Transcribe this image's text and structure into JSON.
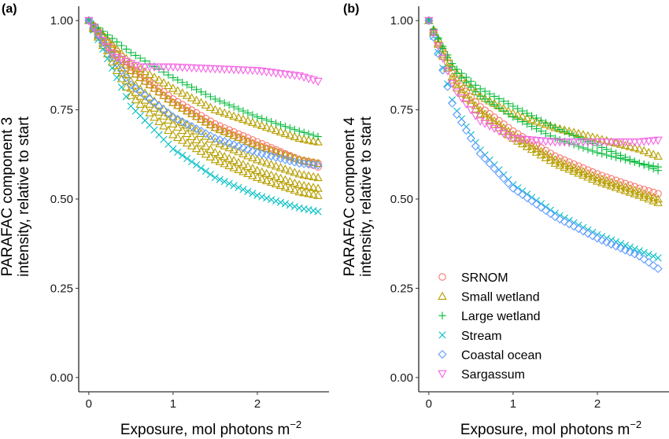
{
  "chart_data": [
    {
      "type": "scatter",
      "panel_label": "(a)",
      "ylabel_line1": "PARAFAC component 3",
      "ylabel_line2": "intensity, relative to start",
      "xlabel": "Exposure, mol photons m",
      "xlabel_sup": "−2",
      "xlim": [
        -0.12,
        2.85
      ],
      "ylim": [
        -0.04,
        1.04
      ],
      "xticks": [
        0,
        1,
        2
      ],
      "xtick_labels": [
        "0",
        "1",
        "2"
      ],
      "yticks": [
        0,
        0.25,
        0.5,
        0.75,
        1.0
      ],
      "ytick_labels": [
        "0.00",
        "0.25",
        "0.50",
        "0.75",
        "1.00"
      ],
      "grid": false,
      "series": [
        {
          "name": "SRNOM",
          "points": [
            [
              0,
              1.0
            ],
            [
              0.5,
              0.87
            ],
            [
              1.0,
              0.78
            ],
            [
              1.5,
              0.71
            ],
            [
              2.0,
              0.66
            ],
            [
              2.5,
              0.61
            ],
            [
              2.72,
              0.59
            ]
          ]
        },
        {
          "name": "SRNOM",
          "points": [
            [
              0,
              1.0
            ],
            [
              0.5,
              0.86
            ],
            [
              1.0,
              0.77
            ],
            [
              1.5,
              0.7
            ],
            [
              2.0,
              0.65
            ],
            [
              2.5,
              0.61
            ],
            [
              2.72,
              0.6
            ]
          ]
        },
        {
          "name": "Small wetland",
          "points": [
            [
              0,
              1.0
            ],
            [
              0.5,
              0.88
            ],
            [
              1.0,
              0.81
            ],
            [
              1.5,
              0.75
            ],
            [
              2.0,
              0.71
            ],
            [
              2.5,
              0.67
            ],
            [
              2.72,
              0.66
            ]
          ]
        },
        {
          "name": "Small wetland",
          "points": [
            [
              0,
              1.0
            ],
            [
              0.5,
              0.86
            ],
            [
              1.0,
              0.77
            ],
            [
              1.5,
              0.7
            ],
            [
              2.0,
              0.65
            ],
            [
              2.5,
              0.61
            ],
            [
              2.72,
              0.6
            ]
          ]
        },
        {
          "name": "Small wetland",
          "points": [
            [
              0,
              1.0
            ],
            [
              0.5,
              0.83
            ],
            [
              1.0,
              0.73
            ],
            [
              1.5,
              0.66
            ],
            [
              2.0,
              0.61
            ],
            [
              2.5,
              0.57
            ],
            [
              2.72,
              0.56
            ]
          ]
        },
        {
          "name": "Small wetland",
          "points": [
            [
              0,
              1.0
            ],
            [
              0.5,
              0.81
            ],
            [
              1.0,
              0.71
            ],
            [
              1.5,
              0.63
            ],
            [
              2.0,
              0.58
            ],
            [
              2.5,
              0.54
            ],
            [
              2.72,
              0.53
            ]
          ]
        },
        {
          "name": "Small wetland",
          "points": [
            [
              0,
              1.0
            ],
            [
              0.5,
              0.79
            ],
            [
              1.0,
              0.68
            ],
            [
              1.5,
              0.61
            ],
            [
              2.0,
              0.56
            ],
            [
              2.5,
              0.52
            ],
            [
              2.72,
              0.51
            ]
          ]
        },
        {
          "name": "Large wetland",
          "points": [
            [
              0,
              1.0
            ],
            [
              0.5,
              0.91
            ],
            [
              1.0,
              0.84
            ],
            [
              1.5,
              0.78
            ],
            [
              2.0,
              0.73
            ],
            [
              2.5,
              0.69
            ],
            [
              2.72,
              0.675
            ]
          ]
        },
        {
          "name": "Stream",
          "points": [
            [
              0,
              1.0
            ],
            [
              0.5,
              0.76
            ],
            [
              1.0,
              0.64
            ],
            [
              1.5,
              0.56
            ],
            [
              2.0,
              0.51
            ],
            [
              2.5,
              0.475
            ],
            [
              2.72,
              0.465
            ]
          ]
        },
        {
          "name": "Coastal ocean",
          "points": [
            [
              0,
              1.0
            ],
            [
              0.5,
              0.82
            ],
            [
              1.0,
              0.73
            ],
            [
              1.5,
              0.67
            ],
            [
              2.0,
              0.63
            ],
            [
              2.5,
              0.6
            ],
            [
              2.72,
              0.595
            ]
          ]
        },
        {
          "name": "Sargassum",
          "points": [
            [
              0,
              1.0
            ],
            [
              0.3,
              0.9
            ],
            [
              0.6,
              0.87
            ],
            [
              1.0,
              0.87
            ],
            [
              1.5,
              0.865
            ],
            [
              2.0,
              0.86
            ],
            [
              2.5,
              0.845
            ],
            [
              2.72,
              0.83
            ]
          ]
        }
      ]
    },
    {
      "type": "scatter",
      "panel_label": "(b)",
      "ylabel_line1": "PARAFAC component 4",
      "ylabel_line2": "intensity, relative to start",
      "xlabel": "Exposure, mol photons m",
      "xlabel_sup": "−2",
      "xlim": [
        -0.12,
        2.85
      ],
      "ylim": [
        -0.04,
        1.04
      ],
      "xticks": [
        0,
        1,
        2
      ],
      "xtick_labels": [
        "0",
        "1",
        "2"
      ],
      "yticks": [
        0,
        0.25,
        0.5,
        0.75,
        1.0
      ],
      "ytick_labels": [
        "0.00",
        "0.25",
        "0.50",
        "0.75",
        "1.00"
      ],
      "grid": false,
      "legend_position": "bottom-left",
      "series": [
        {
          "name": "SRNOM",
          "points": [
            [
              0,
              1.0
            ],
            [
              0.3,
              0.84
            ],
            [
              0.6,
              0.76
            ],
            [
              1.0,
              0.69
            ],
            [
              1.5,
              0.62
            ],
            [
              2.0,
              0.57
            ],
            [
              2.5,
              0.53
            ],
            [
              2.72,
              0.515
            ]
          ]
        },
        {
          "name": "Small wetland",
          "points": [
            [
              0,
              1.0
            ],
            [
              0.3,
              0.86
            ],
            [
              0.6,
              0.79
            ],
            [
              1.0,
              0.74
            ],
            [
              1.5,
              0.7
            ],
            [
              2.0,
              0.67
            ],
            [
              2.5,
              0.64
            ],
            [
              2.72,
              0.62
            ]
          ]
        },
        {
          "name": "Small wetland",
          "points": [
            [
              0,
              1.0
            ],
            [
              0.3,
              0.83
            ],
            [
              0.6,
              0.75
            ],
            [
              1.0,
              0.68
            ],
            [
              1.5,
              0.61
            ],
            [
              2.0,
              0.56
            ],
            [
              2.5,
              0.52
            ],
            [
              2.72,
              0.5
            ]
          ]
        },
        {
          "name": "Small wetland",
          "points": [
            [
              0,
              1.0
            ],
            [
              0.3,
              0.82
            ],
            [
              0.6,
              0.74
            ],
            [
              1.0,
              0.67
            ],
            [
              1.5,
              0.6
            ],
            [
              2.0,
              0.55
            ],
            [
              2.5,
              0.51
            ],
            [
              2.72,
              0.49
            ]
          ]
        },
        {
          "name": "Large wetland",
          "points": [
            [
              0,
              1.0
            ],
            [
              0.3,
              0.87
            ],
            [
              0.6,
              0.81
            ],
            [
              1.0,
              0.76
            ],
            [
              1.5,
              0.7
            ],
            [
              2.0,
              0.65
            ],
            [
              2.5,
              0.6
            ],
            [
              2.72,
              0.58
            ]
          ]
        },
        {
          "name": "Large wetland",
          "points": [
            [
              0,
              1.0
            ],
            [
              0.3,
              0.86
            ],
            [
              0.6,
              0.79
            ],
            [
              1.0,
              0.73
            ],
            [
              1.5,
              0.67
            ],
            [
              2.0,
              0.63
            ],
            [
              2.5,
              0.6
            ],
            [
              2.72,
              0.59
            ]
          ]
        },
        {
          "name": "Stream",
          "points": [
            [
              0,
              1.0
            ],
            [
              0.3,
              0.76
            ],
            [
              0.6,
              0.64
            ],
            [
              1.0,
              0.54
            ],
            [
              1.5,
              0.46
            ],
            [
              2.0,
              0.4
            ],
            [
              2.5,
              0.355
            ],
            [
              2.72,
              0.335
            ]
          ]
        },
        {
          "name": "Coastal ocean",
          "points": [
            [
              0,
              1.0
            ],
            [
              0.3,
              0.75
            ],
            [
              0.6,
              0.63
            ],
            [
              1.0,
              0.53
            ],
            [
              1.5,
              0.45
            ],
            [
              2.0,
              0.39
            ],
            [
              2.5,
              0.34
            ],
            [
              2.72,
              0.305
            ]
          ]
        },
        {
          "name": "Sargassum",
          "points": [
            [
              0,
              1.0
            ],
            [
              0.3,
              0.81
            ],
            [
              0.6,
              0.72
            ],
            [
              1.0,
              0.67
            ],
            [
              1.5,
              0.66
            ],
            [
              2.0,
              0.66
            ],
            [
              2.5,
              0.66
            ],
            [
              2.72,
              0.665
            ]
          ]
        }
      ]
    }
  ],
  "legend": [
    {
      "name": "SRNOM",
      "color": "#F8766D",
      "shape": "circle"
    },
    {
      "name": "Small wetland",
      "color": "#B79F00",
      "shape": "triangle-up"
    },
    {
      "name": "Large wetland",
      "color": "#00BA38",
      "shape": "plus"
    },
    {
      "name": "Stream",
      "color": "#00BFC4",
      "shape": "cross"
    },
    {
      "name": "Coastal ocean",
      "color": "#619CFF",
      "shape": "diamond"
    },
    {
      "name": "Sargassum",
      "color": "#F564E3",
      "shape": "triangle-down"
    }
  ]
}
